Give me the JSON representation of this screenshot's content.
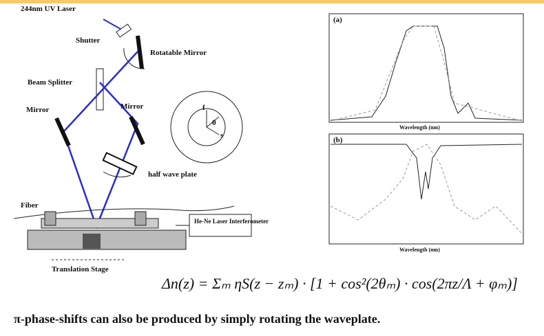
{
  "diagram": {
    "labels": {
      "laser": "244nm UV Laser",
      "shutter": "Shutter",
      "rotatable_mirror": "Rotatable Mirror",
      "beam_splitter": "Beam Splitter",
      "mirror_left": "Mirror",
      "mirror_right": "Mirror",
      "half_wave_plate": "half wave plate",
      "fiber": "Fiber",
      "interferometer": "He-Ne Laser Interferometer",
      "translation_stage": "Translation Stage",
      "axis_f": "f",
      "axis_theta": "θ",
      "axis_s": "s"
    },
    "plots": [
      {
        "panel": "(a)",
        "x_label": "Wavelength (nm)"
      },
      {
        "panel": "(b)",
        "x_label": "Wavelength (nm)"
      }
    ],
    "equation": "Δn(z) = Σₘ ηS(z − zₘ) · [1 + cos²(2θₘ) · cos(2πz/Λ + φₘ)]",
    "caption": "π-phase-shifts can also be produced by simply rotating the waveplate."
  }
}
